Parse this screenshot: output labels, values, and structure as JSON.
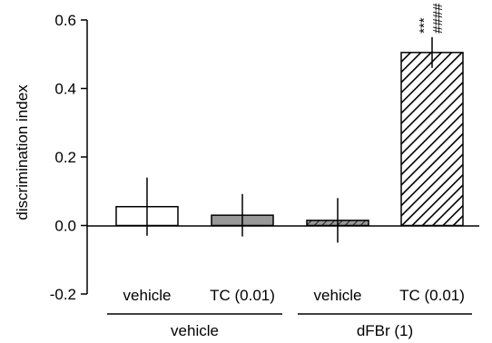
{
  "chart_data": {
    "type": "bar",
    "ylabel": "discrimination index",
    "ylim": [
      -0.2,
      0.6
    ],
    "yticks": [
      -0.2,
      0.0,
      0.2,
      0.4,
      0.6
    ],
    "ytick_labels": [
      "-0.2",
      "0.0",
      "0.2",
      "0.4",
      "0.6"
    ],
    "categories": [
      "vehicle",
      "TC (0.01)",
      "vehicle",
      "TC (0.01)"
    ],
    "values": [
      0.055,
      0.03,
      0.015,
      0.505
    ],
    "error": [
      0.085,
      0.062,
      0.065,
      0.045
    ],
    "fills": [
      "white",
      "gray",
      "gray-hatched",
      "white-hatched"
    ],
    "groups": [
      {
        "label": "vehicle",
        "categories": [
          0,
          1
        ]
      },
      {
        "label": "dFBr (1)",
        "categories": [
          2,
          3
        ]
      }
    ],
    "annotations": [
      {
        "category": 3,
        "text": "***"
      },
      {
        "category": 3,
        "text": "####"
      }
    ],
    "colors": {
      "gray": "#999999",
      "stroke": "#000000",
      "background": "#ffffff"
    }
  }
}
